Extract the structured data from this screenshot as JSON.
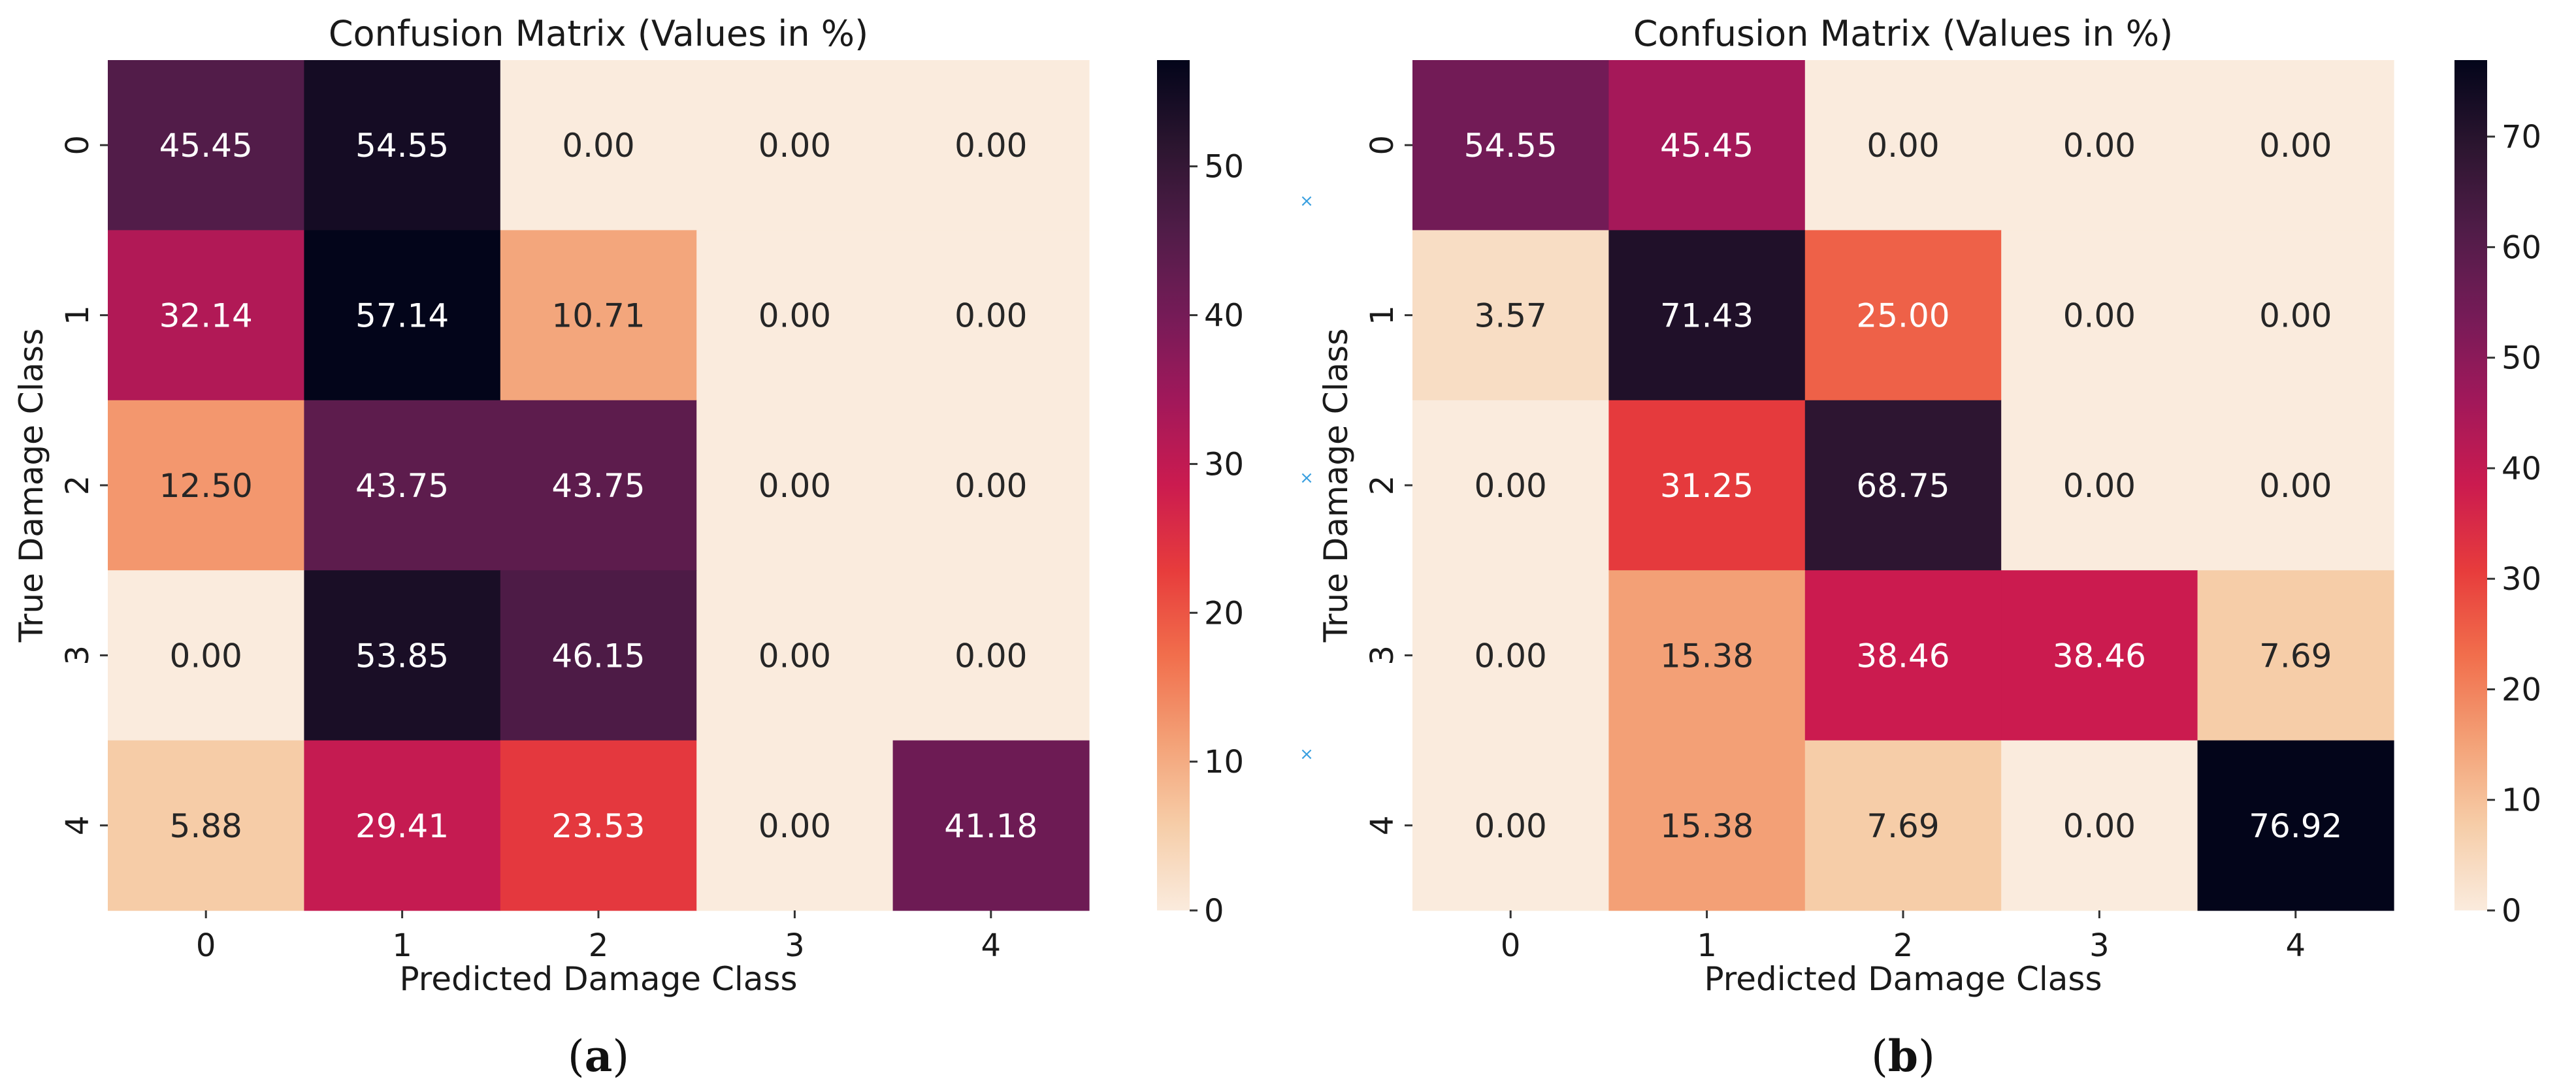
{
  "chart_data": [
    {
      "type": "heatmap",
      "title": "Confusion Matrix (Values in %)",
      "xlabel": "Predicted Damage Class",
      "ylabel": "True Damage Class",
      "x_categories": [
        "0",
        "1",
        "2",
        "3",
        "4"
      ],
      "y_categories": [
        "0",
        "1",
        "2",
        "3",
        "4"
      ],
      "values": [
        [
          45.45,
          54.55,
          0.0,
          0.0,
          0.0
        ],
        [
          32.14,
          57.14,
          10.71,
          0.0,
          0.0
        ],
        [
          12.5,
          43.75,
          43.75,
          0.0,
          0.0
        ],
        [
          0.0,
          53.85,
          46.15,
          0.0,
          0.0
        ],
        [
          5.88,
          29.41,
          23.53,
          0.0,
          41.18
        ]
      ],
      "colorbar": {
        "min": 0,
        "max": 57.14,
        "ticks": [
          0,
          10,
          20,
          30,
          40,
          50
        ]
      },
      "colormap": "rocket_r",
      "panel_label": {
        "open": "(",
        "letter": "a",
        "close": ")"
      }
    },
    {
      "type": "heatmap",
      "title": "Confusion Matrix (Values in %)",
      "xlabel": "Predicted Damage Class",
      "ylabel": "True Damage Class",
      "x_categories": [
        "0",
        "1",
        "2",
        "3",
        "4"
      ],
      "y_categories": [
        "0",
        "1",
        "2",
        "3",
        "4"
      ],
      "values": [
        [
          54.55,
          45.45,
          0.0,
          0.0,
          0.0
        ],
        [
          3.57,
          71.43,
          25.0,
          0.0,
          0.0
        ],
        [
          0.0,
          31.25,
          68.75,
          0.0,
          0.0
        ],
        [
          0.0,
          15.38,
          38.46,
          38.46,
          7.69
        ],
        [
          0.0,
          15.38,
          7.69,
          0.0,
          76.92
        ]
      ],
      "colorbar": {
        "min": 0,
        "max": 76.92,
        "ticks": [
          0,
          10,
          20,
          30,
          40,
          50,
          60,
          70
        ]
      },
      "colormap": "rocket_r",
      "panel_label": {
        "open": "(",
        "letter": "b",
        "close": ")"
      }
    }
  ],
  "decor": {
    "marker_glyph": "×",
    "marker_color": "#3aa0e0"
  }
}
